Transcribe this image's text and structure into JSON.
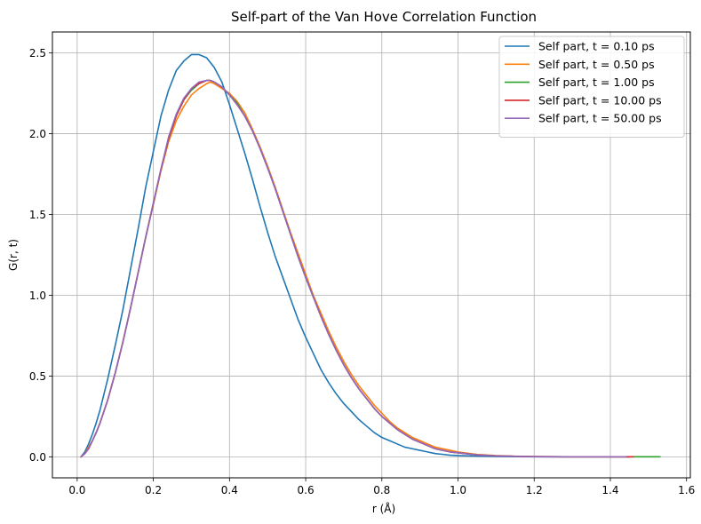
{
  "chart_data": {
    "type": "line",
    "title": "Self-part of the Van Hove Correlation Function",
    "xlabel": "r (Å)",
    "ylabel": "G(r, t)",
    "xlim": [
      -0.065,
      1.61
    ],
    "ylim": [
      -0.13,
      2.63
    ],
    "xticks": [
      0.0,
      0.2,
      0.4,
      0.6,
      0.8,
      1.0,
      1.2,
      1.4,
      1.6
    ],
    "xtick_labels": [
      "0.0",
      "0.2",
      "0.4",
      "0.6",
      "0.8",
      "1.0",
      "1.2",
      "1.4",
      "1.6"
    ],
    "yticks": [
      0.0,
      0.5,
      1.0,
      1.5,
      2.0,
      2.5
    ],
    "ytick_labels": [
      "0.0",
      "0.5",
      "1.0",
      "1.5",
      "2.0",
      "2.5"
    ],
    "grid": true,
    "legend_position": "top-right",
    "series": [
      {
        "name": "Self part, t = 0.10 ps",
        "color": "#1f77b4",
        "x": [
          0.01,
          0.02,
          0.03,
          0.04,
          0.05,
          0.06,
          0.08,
          0.1,
          0.12,
          0.14,
          0.16,
          0.18,
          0.2,
          0.22,
          0.24,
          0.26,
          0.28,
          0.3,
          0.32,
          0.33,
          0.34,
          0.36,
          0.38,
          0.4,
          0.42,
          0.44,
          0.46,
          0.48,
          0.5,
          0.52,
          0.54,
          0.56,
          0.58,
          0.6,
          0.62,
          0.64,
          0.66,
          0.68,
          0.7,
          0.72,
          0.74,
          0.76,
          0.78,
          0.8,
          0.82,
          0.84,
          0.86,
          0.88,
          0.9,
          0.92,
          0.94,
          0.96,
          0.98,
          1.0,
          1.05,
          1.1,
          1.15,
          1.2,
          1.3,
          1.4,
          1.45
        ],
        "y": [
          0.0,
          0.03,
          0.08,
          0.14,
          0.21,
          0.29,
          0.48,
          0.69,
          0.91,
          1.16,
          1.41,
          1.67,
          1.89,
          2.11,
          2.27,
          2.39,
          2.45,
          2.49,
          2.49,
          2.48,
          2.47,
          2.41,
          2.32,
          2.18,
          2.03,
          1.88,
          1.72,
          1.55,
          1.39,
          1.24,
          1.11,
          0.98,
          0.85,
          0.74,
          0.64,
          0.54,
          0.46,
          0.39,
          0.33,
          0.28,
          0.23,
          0.19,
          0.15,
          0.12,
          0.1,
          0.08,
          0.06,
          0.05,
          0.04,
          0.03,
          0.02,
          0.015,
          0.01,
          0.008,
          0.004,
          0.002,
          0.001,
          0.0,
          0.0,
          0.0,
          0.0
        ]
      },
      {
        "name": "Self part, t = 0.50 ps",
        "color": "#ff7f0e",
        "x": [
          0.01,
          0.02,
          0.03,
          0.04,
          0.05,
          0.06,
          0.08,
          0.1,
          0.12,
          0.14,
          0.16,
          0.18,
          0.2,
          0.22,
          0.24,
          0.26,
          0.28,
          0.3,
          0.32,
          0.34,
          0.35,
          0.36,
          0.38,
          0.4,
          0.42,
          0.44,
          0.46,
          0.48,
          0.5,
          0.52,
          0.54,
          0.56,
          0.58,
          0.6,
          0.62,
          0.64,
          0.66,
          0.68,
          0.7,
          0.72,
          0.74,
          0.76,
          0.78,
          0.8,
          0.82,
          0.84,
          0.86,
          0.88,
          0.9,
          0.92,
          0.94,
          0.96,
          0.98,
          1.0,
          1.05,
          1.1,
          1.15,
          1.2,
          1.3,
          1.4,
          1.45
        ],
        "y": [
          0.0,
          0.02,
          0.06,
          0.1,
          0.15,
          0.21,
          0.35,
          0.52,
          0.71,
          0.92,
          1.14,
          1.36,
          1.56,
          1.77,
          1.95,
          2.08,
          2.17,
          2.24,
          2.28,
          2.31,
          2.32,
          2.31,
          2.28,
          2.25,
          2.2,
          2.13,
          2.03,
          1.92,
          1.8,
          1.67,
          1.53,
          1.39,
          1.26,
          1.13,
          1.0,
          0.89,
          0.78,
          0.68,
          0.59,
          0.51,
          0.44,
          0.38,
          0.32,
          0.27,
          0.22,
          0.18,
          0.15,
          0.12,
          0.1,
          0.08,
          0.06,
          0.05,
          0.04,
          0.03,
          0.015,
          0.008,
          0.004,
          0.002,
          0.0,
          0.0,
          0.0
        ]
      },
      {
        "name": "Self part, t = 1.00 ps",
        "color": "#2ca02c",
        "x": [
          0.01,
          0.02,
          0.03,
          0.04,
          0.05,
          0.06,
          0.08,
          0.1,
          0.12,
          0.14,
          0.16,
          0.18,
          0.2,
          0.22,
          0.24,
          0.26,
          0.28,
          0.3,
          0.32,
          0.34,
          0.35,
          0.36,
          0.38,
          0.4,
          0.42,
          0.44,
          0.46,
          0.48,
          0.5,
          0.52,
          0.54,
          0.56,
          0.58,
          0.6,
          0.62,
          0.64,
          0.66,
          0.68,
          0.7,
          0.72,
          0.74,
          0.76,
          0.78,
          0.8,
          0.82,
          0.84,
          0.86,
          0.88,
          0.9,
          0.92,
          0.94,
          0.96,
          0.98,
          1.0,
          1.05,
          1.1,
          1.15,
          1.2,
          1.3,
          1.4,
          1.53
        ],
        "y": [
          0.0,
          0.02,
          0.05,
          0.1,
          0.15,
          0.21,
          0.35,
          0.52,
          0.71,
          0.92,
          1.14,
          1.36,
          1.57,
          1.78,
          1.97,
          2.11,
          2.21,
          2.27,
          2.31,
          2.33,
          2.33,
          2.32,
          2.29,
          2.24,
          2.19,
          2.11,
          2.02,
          1.91,
          1.79,
          1.66,
          1.52,
          1.38,
          1.24,
          1.11,
          0.99,
          0.87,
          0.76,
          0.66,
          0.57,
          0.49,
          0.42,
          0.36,
          0.3,
          0.25,
          0.21,
          0.17,
          0.14,
          0.11,
          0.09,
          0.07,
          0.05,
          0.04,
          0.03,
          0.025,
          0.012,
          0.006,
          0.003,
          0.001,
          0.0,
          0.0,
          0.0
        ]
      },
      {
        "name": "Self part, t = 10.00 ps",
        "color": "#d62728",
        "x": [
          0.01,
          0.02,
          0.03,
          0.04,
          0.05,
          0.06,
          0.08,
          0.1,
          0.12,
          0.14,
          0.16,
          0.18,
          0.2,
          0.22,
          0.24,
          0.26,
          0.28,
          0.3,
          0.32,
          0.34,
          0.35,
          0.36,
          0.38,
          0.4,
          0.42,
          0.44,
          0.46,
          0.48,
          0.5,
          0.52,
          0.54,
          0.56,
          0.58,
          0.6,
          0.62,
          0.64,
          0.66,
          0.68,
          0.7,
          0.72,
          0.74,
          0.76,
          0.78,
          0.8,
          0.82,
          0.84,
          0.86,
          0.88,
          0.9,
          0.92,
          0.94,
          0.96,
          0.98,
          1.0,
          1.05,
          1.1,
          1.15,
          1.2,
          1.3,
          1.4,
          1.46
        ],
        "y": [
          0.0,
          0.02,
          0.05,
          0.1,
          0.15,
          0.21,
          0.35,
          0.52,
          0.71,
          0.92,
          1.14,
          1.36,
          1.57,
          1.78,
          1.97,
          2.11,
          2.21,
          2.28,
          2.31,
          2.33,
          2.33,
          2.32,
          2.29,
          2.24,
          2.18,
          2.11,
          2.02,
          1.91,
          1.79,
          1.66,
          1.52,
          1.38,
          1.24,
          1.11,
          0.99,
          0.87,
          0.76,
          0.66,
          0.57,
          0.49,
          0.42,
          0.36,
          0.3,
          0.25,
          0.21,
          0.17,
          0.14,
          0.11,
          0.09,
          0.07,
          0.05,
          0.04,
          0.03,
          0.025,
          0.012,
          0.006,
          0.003,
          0.001,
          0.0,
          0.0,
          0.0
        ]
      },
      {
        "name": "Self part, t = 50.00 ps",
        "color": "#9467bd",
        "x": [
          0.01,
          0.02,
          0.03,
          0.04,
          0.05,
          0.06,
          0.08,
          0.1,
          0.12,
          0.14,
          0.16,
          0.18,
          0.2,
          0.22,
          0.24,
          0.26,
          0.28,
          0.3,
          0.32,
          0.34,
          0.35,
          0.36,
          0.38,
          0.4,
          0.42,
          0.44,
          0.46,
          0.48,
          0.5,
          0.52,
          0.54,
          0.56,
          0.58,
          0.6,
          0.62,
          0.64,
          0.66,
          0.68,
          0.7,
          0.72,
          0.74,
          0.76,
          0.78,
          0.8,
          0.82,
          0.84,
          0.86,
          0.88,
          0.9,
          0.92,
          0.94,
          0.96,
          0.98,
          1.0,
          1.05,
          1.1,
          1.15,
          1.2,
          1.3,
          1.4,
          1.44
        ],
        "y": [
          0.0,
          0.02,
          0.05,
          0.1,
          0.15,
          0.21,
          0.35,
          0.52,
          0.71,
          0.92,
          1.14,
          1.36,
          1.57,
          1.78,
          1.98,
          2.12,
          2.22,
          2.28,
          2.32,
          2.33,
          2.33,
          2.32,
          2.29,
          2.24,
          2.18,
          2.11,
          2.02,
          1.91,
          1.79,
          1.66,
          1.52,
          1.38,
          1.24,
          1.11,
          0.99,
          0.87,
          0.76,
          0.66,
          0.57,
          0.49,
          0.42,
          0.36,
          0.3,
          0.25,
          0.21,
          0.17,
          0.14,
          0.11,
          0.09,
          0.07,
          0.05,
          0.04,
          0.03,
          0.025,
          0.012,
          0.006,
          0.003,
          0.001,
          0.0,
          0.0,
          0.0
        ]
      }
    ]
  }
}
